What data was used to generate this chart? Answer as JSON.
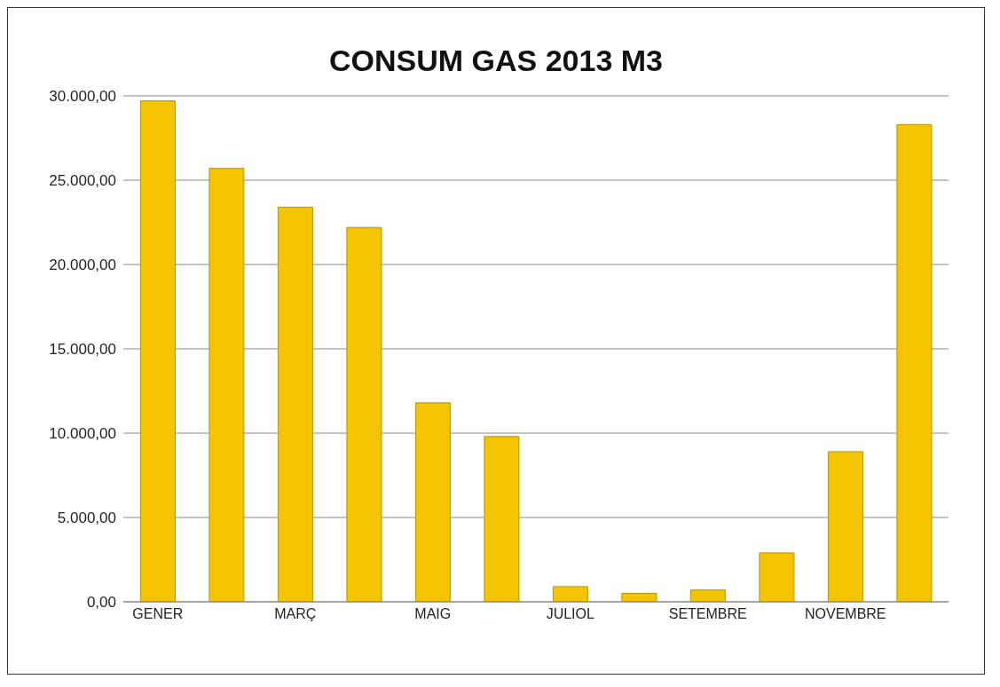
{
  "chart_data": {
    "type": "bar",
    "title": "CONSUM GAS 2013 M3",
    "categories": [
      "GENER",
      null,
      "MARÇ",
      null,
      "MAIG",
      null,
      "JULIOL",
      null,
      "SETEMBRE",
      null,
      "NOVEMBRE",
      null
    ],
    "values": [
      29700,
      25700,
      23400,
      22200,
      11800,
      9800,
      900,
      500,
      700,
      2900,
      8900,
      28300
    ],
    "color": "#f5c400",
    "ylim": [
      0,
      30000
    ],
    "yticks": [
      {
        "value": 0,
        "label": "0,00"
      },
      {
        "value": 5000,
        "label": "5.000,00"
      },
      {
        "value": 10000,
        "label": "10.000,00"
      },
      {
        "value": 15000,
        "label": "15.000,00"
      },
      {
        "value": 20000,
        "label": "20.000,00"
      },
      {
        "value": 25000,
        "label": "25.000,00"
      },
      {
        "value": 30000,
        "label": "30.000,00"
      }
    ],
    "grid": "y"
  }
}
